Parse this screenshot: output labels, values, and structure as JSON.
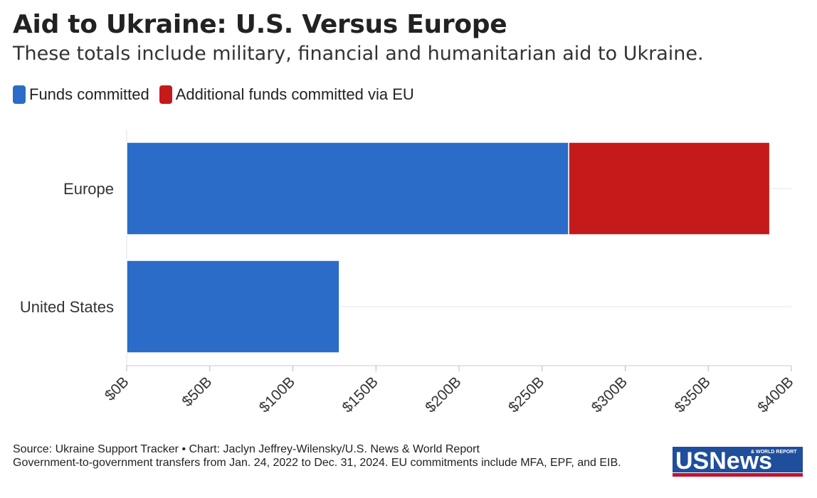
{
  "header": {
    "title": "Aid to Ukraine: U.S. Versus Europe",
    "subtitle": "These totals include military, financial and humanitarian aid to Ukraine."
  },
  "legend": [
    {
      "label": "Funds committed",
      "color": "#2b6cc8"
    },
    {
      "label": "Additional funds committed via EU",
      "color": "#c41a1a"
    }
  ],
  "chart_data": {
    "type": "bar",
    "orientation": "horizontal",
    "stacked": true,
    "categories": [
      "Europe",
      "United States"
    ],
    "series": [
      {
        "name": "Funds committed",
        "values": [
          266,
          128
        ],
        "color": "#2b6cc8"
      },
      {
        "name": "Additional funds committed via EU",
        "values": [
          121,
          0
        ],
        "color": "#c41a1a"
      }
    ],
    "xlim": [
      0,
      400
    ],
    "xticks": [
      0,
      50,
      100,
      150,
      200,
      250,
      300,
      350,
      400
    ],
    "xtick_labels": [
      "$0B",
      "$50B",
      "$100B",
      "$150B",
      "$200B",
      "$250B",
      "$300B",
      "$350B",
      "$400B"
    ],
    "grid": true,
    "title": "Aid to Ukraine: U.S. Versus Europe",
    "xlabel": "",
    "ylabel": ""
  },
  "footer": {
    "source": "Source: Ukraine Support Tracker • Chart: Jaclyn Jeffrey-Wilensky/U.S. News & World Report",
    "note": "Government-to-government transfers from Jan. 24, 2022 to Dec. 31, 2024. EU commitments include MFA, EPF, and EIB."
  },
  "logo": {
    "main_text": "USNews",
    "small_text": "& WORLD REPORT",
    "color": "#1f4e9c",
    "stripe_color": "#c8102e"
  }
}
